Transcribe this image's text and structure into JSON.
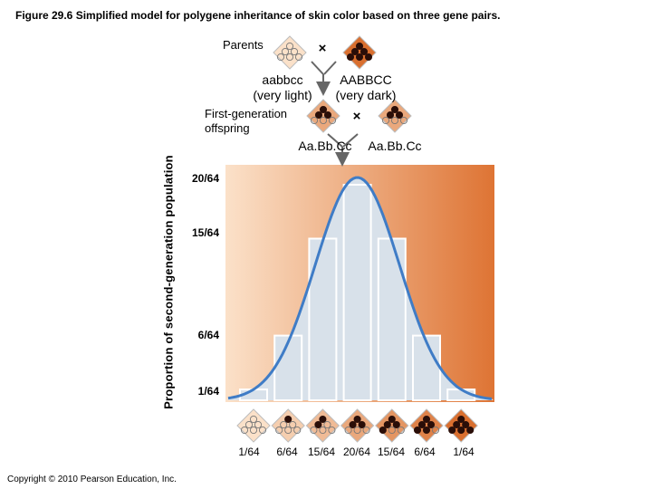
{
  "figure": {
    "title": "Figure 29.6  Simplified model for polygene inheritance of skin color based on three gene pairs."
  },
  "parents": {
    "label": "Parents",
    "light": {
      "genotype": "aabbcc",
      "phenotype": "(very light)",
      "dark_alleles": 0
    },
    "dark": {
      "genotype": "AABBCC",
      "phenotype": "(very dark)",
      "dark_alleles": 6
    },
    "cross_symbol": "×"
  },
  "f1": {
    "label_line1": "First-generation",
    "label_line2": "offspring",
    "genotype_left": "Aa.Bb.Cc",
    "genotype_right": "Aa.Bb.Cc",
    "dark_alleles": 3,
    "cross_symbol": "×"
  },
  "colors": {
    "light_skin": "#fbe1c9",
    "dark_skin": "#d96f2f",
    "curve": "#3f7cc6",
    "area_fill": "#d8e1ea",
    "dark_allele_dot": "#2a0e08"
  },
  "chart_data": {
    "type": "bar",
    "ylabel": "Proportion of second-generation population",
    "y_ticks": [
      "20/64",
      "15/64",
      "6/64",
      "1/64"
    ],
    "categories": [
      "1/64",
      "6/64",
      "15/64",
      "20/64",
      "15/64",
      "6/64",
      "1/64"
    ],
    "dark_alleles": [
      0,
      1,
      2,
      3,
      4,
      5,
      6
    ],
    "values": [
      1,
      6,
      15,
      20,
      15,
      6,
      1
    ],
    "denominator": 64,
    "ylim": [
      0,
      20
    ],
    "overlay": "normal-curve"
  },
  "footer": {
    "copyright": "Copyright © 2010 Pearson Education, Inc."
  }
}
